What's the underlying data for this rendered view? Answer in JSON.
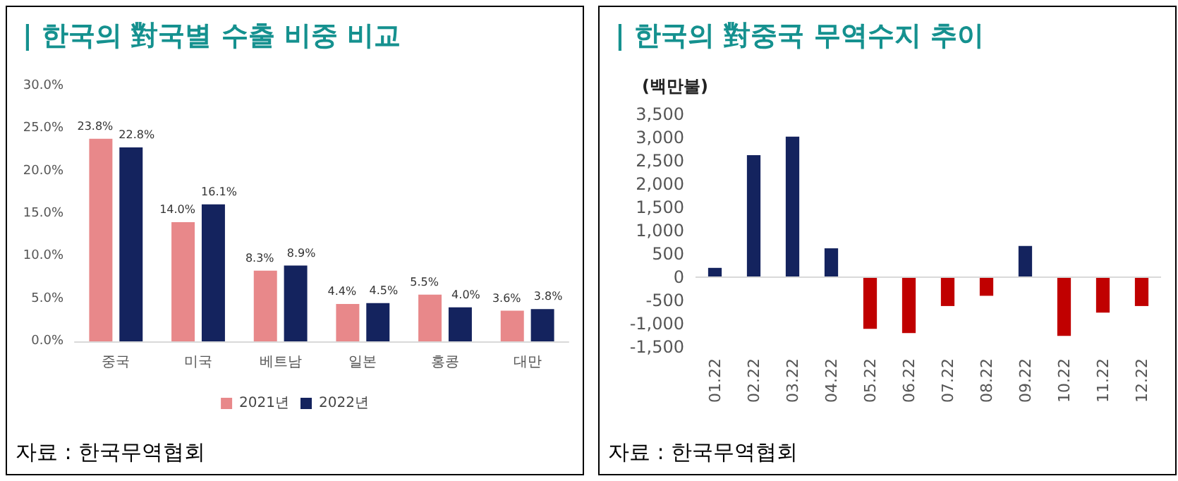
{
  "chart_data": [
    {
      "type": "bar",
      "title": "| 한국의 對국별 수출 비중 비교",
      "categories": [
        "중국",
        "미국",
        "베트남",
        "일본",
        "홍콩",
        "대만"
      ],
      "series": [
        {
          "name": "2021년",
          "color": "#e8888a",
          "values": [
            23.8,
            14.0,
            8.3,
            4.4,
            5.5,
            3.6
          ],
          "value_labels": [
            "23.8%",
            "14.0%",
            "8.3%",
            "4.4%",
            "5.5%",
            "3.6%"
          ]
        },
        {
          "name": "2022년",
          "color": "#14235e",
          "values": [
            22.8,
            16.1,
            8.9,
            4.5,
            4.0,
            3.8
          ],
          "value_labels": [
            "22.8%",
            "16.1%",
            "8.9%",
            "4.5%",
            "4.0%",
            "3.8%"
          ]
        }
      ],
      "ylim": [
        0,
        30
      ],
      "yticks": [
        {
          "value": 0,
          "label": "0.0%"
        },
        {
          "value": 5,
          "label": "5.0%"
        },
        {
          "value": 10,
          "label": "10.0%"
        },
        {
          "value": 15,
          "label": "15.0%"
        },
        {
          "value": 20,
          "label": "20.0%"
        },
        {
          "value": 25,
          "label": "25.0%"
        },
        {
          "value": 30,
          "label": "30.0%"
        }
      ],
      "grid": false,
      "legend": "bottom",
      "annotations": [
        "자료 : 한국무역협회"
      ]
    },
    {
      "type": "bar",
      "title": "| 한국의 對중국 무역수지 추이",
      "ylabel": "(백만불)",
      "categories": [
        "01.22",
        "02.22",
        "03.22",
        "04.22",
        "05.22",
        "06.22",
        "07.22",
        "08.22",
        "09.22",
        "10.22",
        "11.22",
        "12.22"
      ],
      "values": [
        200,
        2620,
        3020,
        620,
        -1110,
        -1200,
        -620,
        -400,
        670,
        -1260,
        -760,
        -620
      ],
      "colors": [
        "#14235e",
        "#14235e",
        "#14235e",
        "#14235e",
        "#c00000",
        "#c00000",
        "#c00000",
        "#c00000",
        "#14235e",
        "#c00000",
        "#c00000",
        "#c00000"
      ],
      "ylim": [
        -1500,
        3500
      ],
      "yticks": [
        {
          "value": -1500,
          "label": "-1,500"
        },
        {
          "value": -1000,
          "label": "-1,000"
        },
        {
          "value": -500,
          "label": "-500"
        },
        {
          "value": 0,
          "label": "0"
        },
        {
          "value": 500,
          "label": "500"
        },
        {
          "value": 1000,
          "label": "1,000"
        },
        {
          "value": 1500,
          "label": "1,500"
        },
        {
          "value": 2000,
          "label": "2,000"
        },
        {
          "value": 2500,
          "label": "2,500"
        },
        {
          "value": 3000,
          "label": "3,000"
        },
        {
          "value": 3500,
          "label": "3,500"
        }
      ],
      "grid": false,
      "ref_lines": [
        {
          "axis": "y",
          "value": 0,
          "color": "#d9d9d9"
        }
      ],
      "annotations": [
        "자료 : 한국무역협회"
      ]
    }
  ]
}
